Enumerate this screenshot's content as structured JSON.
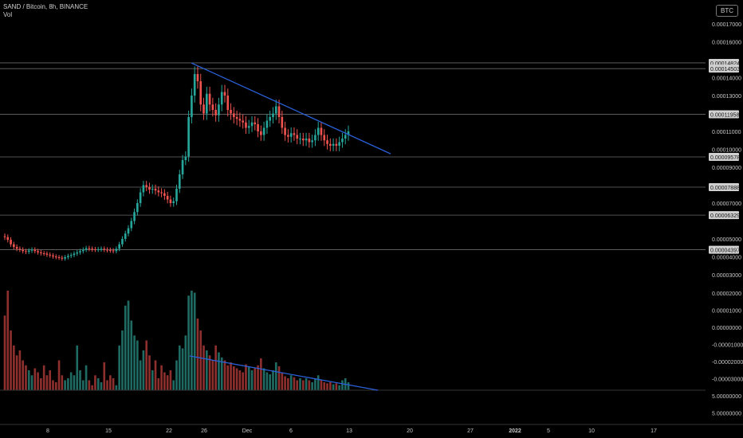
{
  "header": {
    "symbol_line": "SAND / Bitcoin, 8h, BINANCE",
    "vol_label": "Vol"
  },
  "currency_badge": "BTC",
  "colors": {
    "background": "#000000",
    "up": "#26a69a",
    "down": "#ef5350",
    "volume_up": "#1f6b63",
    "volume_down": "#8c2f2d",
    "trendline": "#2a5fd6",
    "level_line": "#6a6a6a",
    "tag_bg": "#d0d0d0"
  },
  "chart_data": {
    "type": "candlestick",
    "symbol": "SAND / Bitcoin",
    "interval": "8h",
    "exchange": "BINANCE",
    "price_axis_ticks": [
      "0.00017000",
      "0.00016000",
      "0.00014000",
      "0.00013000",
      "0.00011000",
      "0.00010000",
      "0.00009000",
      "0.00007000",
      "0.00005000",
      "0.00004000",
      "0.00003000"
    ],
    "horizontal_levels": [
      "0.00014824",
      "0.00014503",
      "0.00011958",
      "0.00009578",
      "0.00007888",
      "0.00006329",
      "0.00004397"
    ],
    "volume_axis_ticks": [
      "0.00002000",
      "0.00001000",
      "0.00000000",
      "-0.00001000",
      "-0.00002000",
      "-0.00003000",
      "5.00000000",
      "5.00000000"
    ],
    "x_ticks": [
      {
        "label": "8",
        "bold": false
      },
      {
        "label": "15",
        "bold": false
      },
      {
        "label": "22",
        "bold": false
      },
      {
        "label": "26",
        "bold": false
      },
      {
        "label": "Dec",
        "bold": false
      },
      {
        "label": "6",
        "bold": false
      },
      {
        "label": "13",
        "bold": false
      },
      {
        "label": "20",
        "bold": false
      },
      {
        "label": "27",
        "bold": false
      },
      {
        "label": "2022",
        "bold": true
      },
      {
        "label": "5",
        "bold": false
      },
      {
        "label": "10",
        "bold": false
      },
      {
        "label": "17",
        "bold": false
      }
    ],
    "closes": [
      5.1e-05,
      4.95e-05,
      4.7e-05,
      4.55e-05,
      4.45e-05,
      4.4e-05,
      4.32e-05,
      4.28e-05,
      4.35e-05,
      4.4e-05,
      4.32e-05,
      4.25e-05,
      4.2e-05,
      4.18e-05,
      4.12e-05,
      4.08e-05,
      4.02e-05,
      3.98e-05,
      3.95e-05,
      3.9e-05,
      3.98e-05,
      4.05e-05,
      4.1e-05,
      4.18e-05,
      4.25e-05,
      4.32e-05,
      4.4e-05,
      4.48e-05,
      4.45e-05,
      4.42e-05,
      4.4e-05,
      4.42e-05,
      4.45e-05,
      4.4e-05,
      4.38e-05,
      4.36e-05,
      4.32e-05,
      4.45e-05,
      4.7e-05,
      5e-05,
      5.3e-05,
      5.6e-05,
      6e-05,
      6.5e-05,
      7e-05,
      7.6e-05,
      8e-05,
      7.9e-05,
      7.75e-05,
      7.8e-05,
      7.7e-05,
      7.6e-05,
      7.55e-05,
      7.4e-05,
      7.2e-05,
      7e-05,
      7.1e-05,
      7.8e-05,
      8.6e-05,
      9.4e-05,
      9.6e-05,
      0.000118,
      0.00013,
      0.000142,
      0.000138,
      0.000125,
      0.00012,
      0.000131,
      0.000125,
      0.000122,
      0.000119,
      0.000125,
      0.000132,
      0.00013,
      0.000122,
      0.00012,
      0.000118,
      0.000117,
      0.000116,
      0.000115,
      0.000112,
      0.000113,
      0.000115,
      0.000114,
      0.00011,
      0.000108,
      0.000112,
      0.000116,
      0.000118,
      0.00012,
      0.000124,
      0.000118,
      0.000112,
      0.000108,
      0.000107,
      0.000109,
      0.000108,
      0.000106,
      0.000106,
      0.000105,
      0.000106,
      0.000104,
      0.000105,
      0.000108,
      0.000112,
      0.000108,
      0.000105,
      0.000103,
      0.000102,
      0.000103,
      0.000102,
      0.000104,
      0.000106,
      0.000108,
      0.00011
    ],
    "volumes": [
      0.75,
      1.0,
      0.6,
      0.45,
      0.35,
      0.4,
      0.3,
      0.25,
      0.2,
      0.15,
      0.22,
      0.18,
      0.12,
      0.25,
      0.15,
      0.2,
      0.1,
      0.08,
      0.3,
      0.15,
      0.1,
      0.12,
      0.18,
      0.15,
      0.45,
      0.2,
      0.1,
      0.25,
      0.1,
      0.05,
      0.15,
      0.12,
      0.08,
      0.28,
      0.1,
      0.15,
      0.12,
      0.05,
      0.45,
      0.6,
      0.85,
      0.9,
      0.7,
      0.55,
      0.5,
      0.3,
      0.4,
      0.5,
      0.35,
      0.2,
      0.3,
      0.12,
      0.25,
      0.18,
      0.15,
      0.2,
      0.1,
      0.3,
      0.45,
      0.42,
      0.55,
      0.95,
      1.0,
      0.98,
      0.72,
      0.6,
      0.45,
      0.4,
      0.35,
      0.3,
      0.45,
      0.38,
      0.33,
      0.3,
      0.25,
      0.28,
      0.24,
      0.22,
      0.2,
      0.18,
      0.26,
      0.24,
      0.2,
      0.22,
      0.25,
      0.32,
      0.22,
      0.18,
      0.16,
      0.2,
      0.28,
      0.24,
      0.18,
      0.14,
      0.12,
      0.15,
      0.13,
      0.1,
      0.12,
      0.1,
      0.12,
      0.1,
      0.08,
      0.12,
      0.15,
      0.1,
      0.08,
      0.07,
      0.08,
      0.06,
      0.07,
      0.05,
      0.1,
      0.12,
      0.08
    ]
  }
}
